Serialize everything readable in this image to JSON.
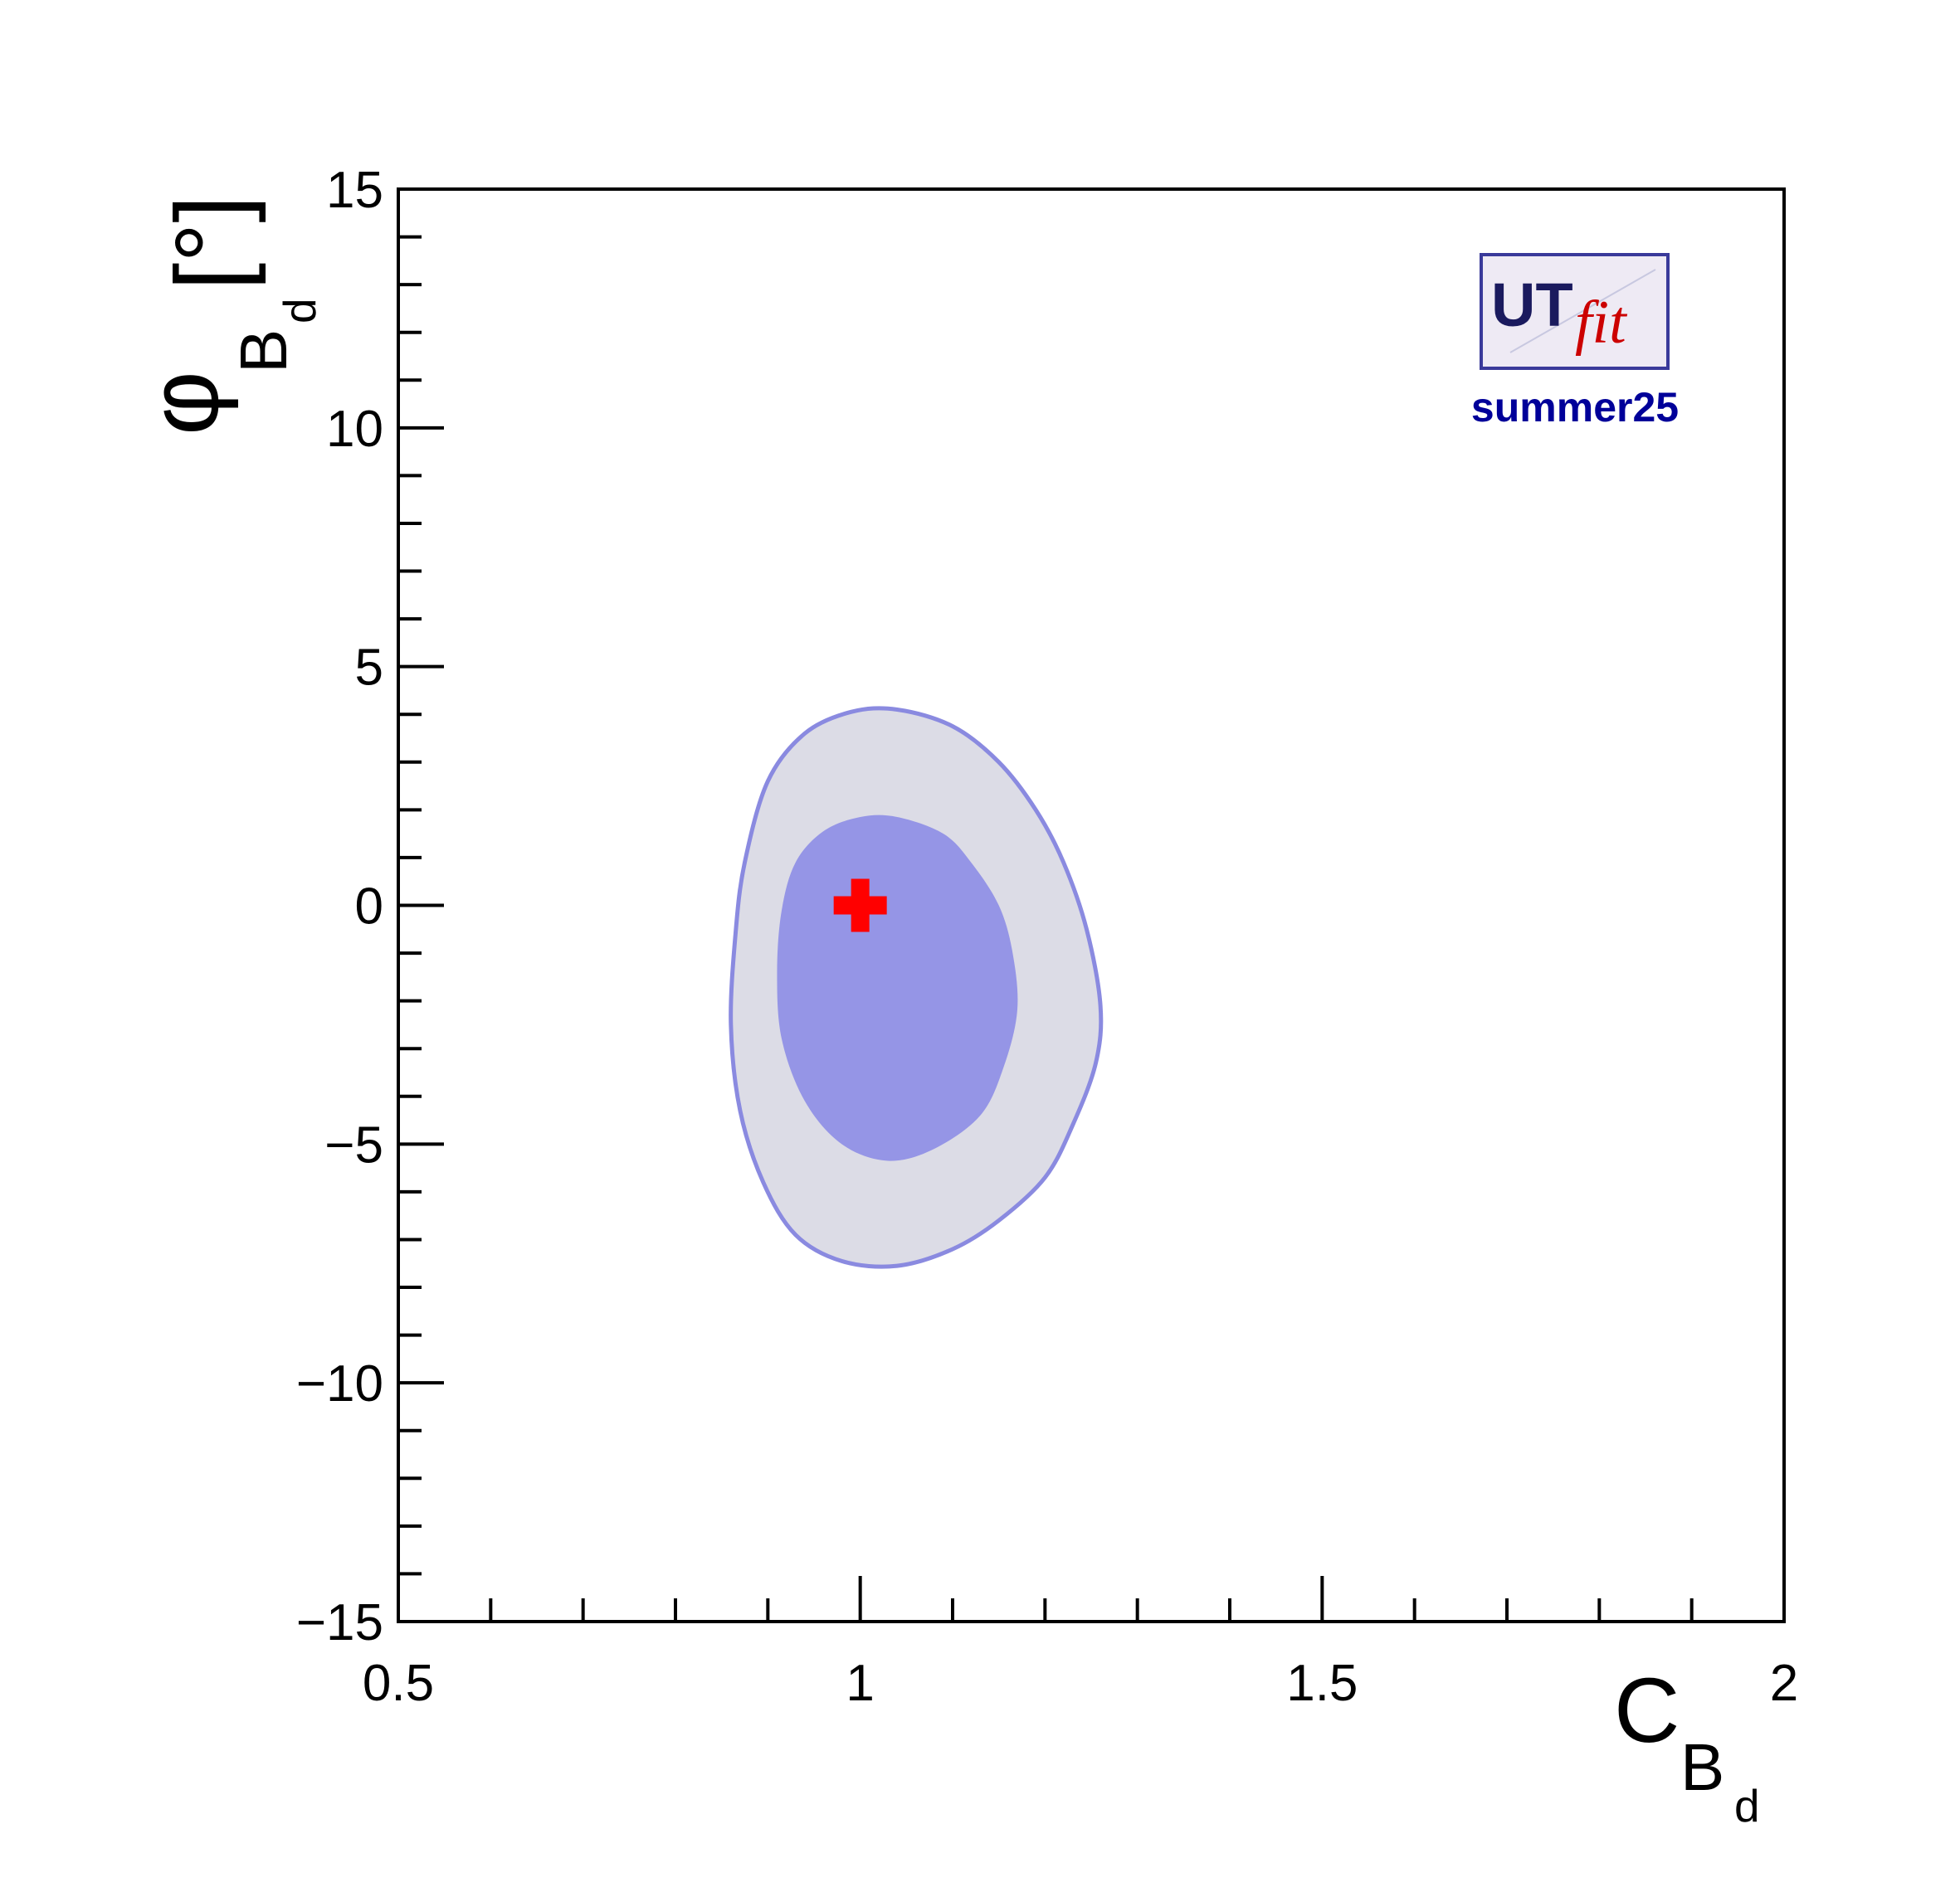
{
  "chart_data": {
    "type": "contour",
    "xlabel": {
      "main": "C",
      "sub": "B",
      "subsub": "d"
    },
    "ylabel": {
      "main": "φ",
      "sub": "B",
      "subsub": "d",
      "unit": "[°]"
    },
    "xlim": [
      0.5,
      2.0
    ],
    "ylim": [
      -15,
      15
    ],
    "xticks": [
      0.5,
      1,
      1.5,
      2
    ],
    "xtick_labels": [
      "0.5",
      "1",
      "1.5",
      "2"
    ],
    "yticks": [
      15,
      10,
      5,
      0,
      -5,
      -10,
      -15
    ],
    "ytick_labels": [
      "15",
      "10",
      "5",
      "0",
      "−5",
      "−10",
      "−15"
    ],
    "grid": false,
    "colors": {
      "outer_fill": "#dcdce6",
      "outer_stroke": "#8a8ae0",
      "inner_fill": "#9595e6",
      "sm_marker": "#ff0000",
      "logo_text": "#000099"
    },
    "regions": [
      {
        "level": "outer",
        "points": [
          [
            1.04,
            4.1
          ],
          [
            1.1,
            3.75
          ],
          [
            1.15,
            3.0
          ],
          [
            1.19,
            2.0
          ],
          [
            1.22,
            0.9
          ],
          [
            1.245,
            -0.5
          ],
          [
            1.26,
            -2.1
          ],
          [
            1.255,
            -3.3
          ],
          [
            1.23,
            -4.6
          ],
          [
            1.2,
            -5.7
          ],
          [
            1.15,
            -6.6
          ],
          [
            1.1,
            -7.2
          ],
          [
            1.04,
            -7.55
          ],
          [
            0.98,
            -7.45
          ],
          [
            0.93,
            -6.9
          ],
          [
            0.895,
            -5.8
          ],
          [
            0.87,
            -4.3
          ],
          [
            0.86,
            -2.5
          ],
          [
            0.865,
            -0.6
          ],
          [
            0.875,
            0.9
          ],
          [
            0.9,
            2.6
          ],
          [
            0.94,
            3.6
          ],
          [
            0.99,
            4.05
          ]
        ]
      },
      {
        "level": "inner",
        "points": [
          [
            1.04,
            1.85
          ],
          [
            1.09,
            1.5
          ],
          [
            1.12,
            0.9
          ],
          [
            1.15,
            0.0
          ],
          [
            1.165,
            -1.0
          ],
          [
            1.17,
            -2.2
          ],
          [
            1.155,
            -3.4
          ],
          [
            1.13,
            -4.4
          ],
          [
            1.08,
            -5.1
          ],
          [
            1.03,
            -5.35
          ],
          [
            0.98,
            -5.0
          ],
          [
            0.94,
            -4.1
          ],
          [
            0.915,
            -2.8
          ],
          [
            0.91,
            -1.4
          ],
          [
            0.915,
            -0.1
          ],
          [
            0.93,
            0.9
          ],
          [
            0.96,
            1.55
          ],
          [
            1.0,
            1.85
          ]
        ]
      }
    ],
    "markers": [
      {
        "name": "SM",
        "x": 1.0,
        "y": 0.0,
        "symbol": "cross",
        "color": "#ff0000"
      }
    ]
  },
  "logo": {
    "text_main": "UT",
    "text_fit": "fit",
    "caption": "summer25"
  }
}
